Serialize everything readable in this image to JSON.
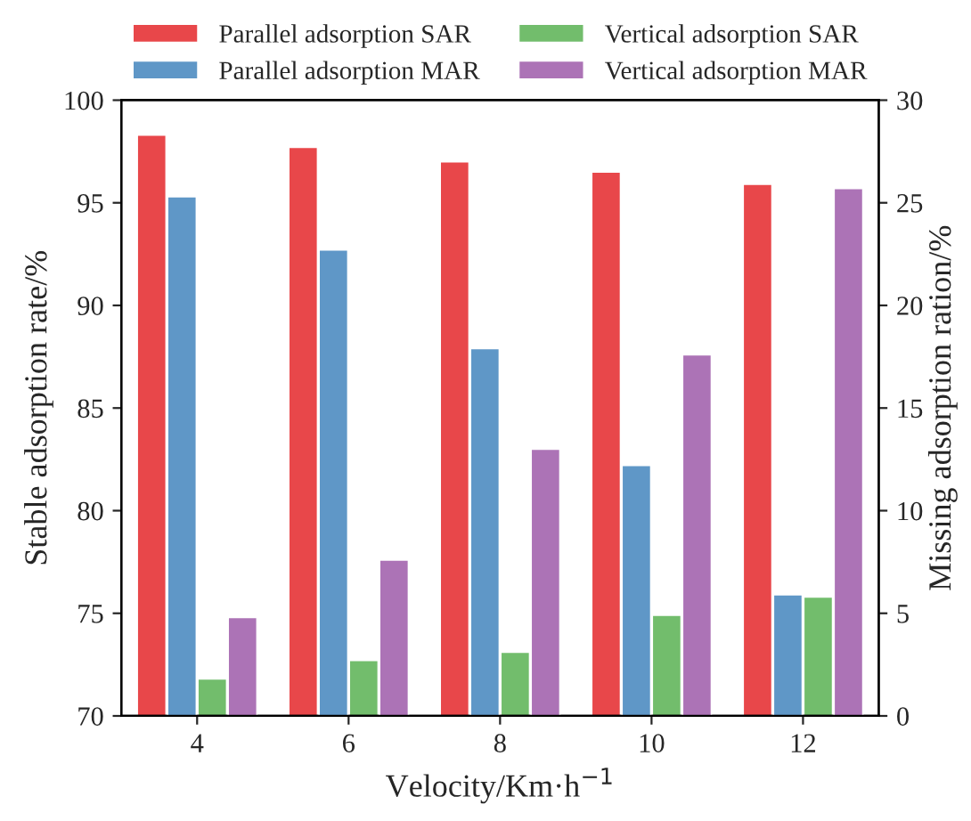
{
  "chart_data": {
    "type": "bar",
    "xlabel": "Velocity/Km·h$^{−1}$",
    "ylabel": "Stable adsorption rate/%",
    "y2label": "Missing adsorption ration/%",
    "categories": [
      "4",
      "6",
      "8",
      "10",
      "12"
    ],
    "series": [
      {
        "name": "Parallel adsorption SAR",
        "color": "#e8474a",
        "values": [
          98.3,
          97.7,
          97.0,
          96.5,
          95.9
        ]
      },
      {
        "name": "Parallel adsorption MAR",
        "color": "#5f97c7",
        "axis": "y2",
        "values": [
          25.3,
          22.7,
          17.9,
          12.2,
          5.9
        ]
      },
      {
        "name": "Vertical adsorption SAR",
        "color": "#72bd6c",
        "values": [
          71.8,
          72.7,
          73.1,
          74.9,
          75.8
        ]
      },
      {
        "name": "Vertical adsorption MAR",
        "color": "#ac73b6",
        "axis": "y2",
        "values": [
          4.8,
          7.6,
          13.0,
          17.6,
          25.7
        ]
      }
    ],
    "ylim": [
      70,
      100
    ],
    "yticks": [
      70,
      75,
      80,
      85,
      90,
      95,
      100
    ],
    "y2lim": [
      0,
      30
    ],
    "y2ticks": [
      0,
      5,
      10,
      15,
      20,
      25,
      30
    ],
    "grid": false,
    "legend": "top"
  }
}
